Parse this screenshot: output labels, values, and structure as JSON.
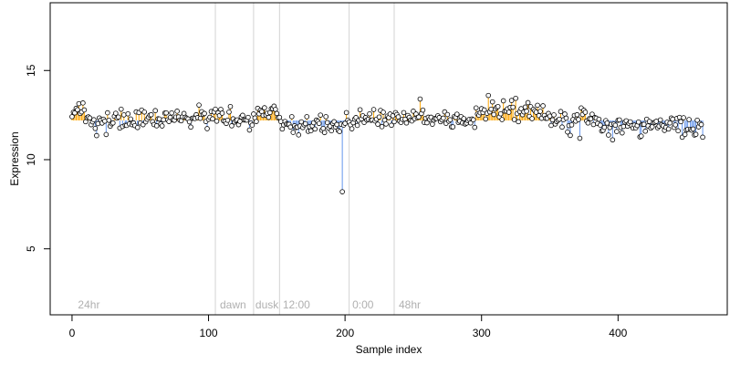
{
  "chart_data": {
    "type": "scatter",
    "title": "",
    "xlabel": "Sample index",
    "ylabel": "Expression",
    "xlim": [
      -16,
      480
    ],
    "ylim": [
      1.3,
      18.8
    ],
    "x_ticks": [
      0,
      100,
      200,
      300,
      400
    ],
    "y_ticks": [
      5,
      10,
      15
    ],
    "baseline": 12.2,
    "grid": false,
    "legend": "none",
    "colors": {
      "above": "#ffa500",
      "below": "#6495ed",
      "point_fill": "#ffffff",
      "point_stroke": "#000000",
      "guide": "#d3d3d3",
      "label": "#b0b0b0"
    },
    "regions": [
      {
        "x": 105,
        "label": ""
      },
      {
        "x": 133,
        "label": ""
      },
      {
        "x": 152,
        "label": ""
      },
      {
        "x": 203,
        "label": ""
      },
      {
        "x": 236,
        "label": ""
      }
    ],
    "region_labels": [
      {
        "x": 3,
        "text": "24hr"
      },
      {
        "x": 107,
        "text": "dawn"
      },
      {
        "x": 133,
        "text": "dusk"
      },
      {
        "x": 153,
        "text": "12:00"
      },
      {
        "x": 204,
        "text": "0:00"
      },
      {
        "x": 238,
        "text": "48hr"
      }
    ],
    "segments": [
      {
        "from": 0,
        "to": 9,
        "mean": 12.7
      },
      {
        "from": 10,
        "to": 87,
        "mean": 12.2
      },
      {
        "from": 88,
        "to": 104,
        "mean": 12.45
      },
      {
        "from": 105,
        "to": 132,
        "mean": 12.3
      },
      {
        "from": 133,
        "to": 152,
        "mean": 12.6
      },
      {
        "from": 153,
        "to": 175,
        "mean": 11.95
      },
      {
        "from": 176,
        "to": 200,
        "mean": 11.9
      },
      {
        "from": 201,
        "to": 262,
        "mean": 12.25
      },
      {
        "from": 263,
        "to": 299,
        "mean": 12.3
      },
      {
        "from": 300,
        "to": 345,
        "mean": 12.7
      },
      {
        "from": 346,
        "to": 387,
        "mean": 12.2
      },
      {
        "from": 388,
        "to": 462,
        "mean": 11.85
      }
    ],
    "spikes": [
      {
        "x": 198,
        "y": 8.2
      },
      {
        "x": 255,
        "y": 13.4
      },
      {
        "x": 305,
        "y": 13.6
      },
      {
        "x": 296,
        "y": 12.9
      },
      {
        "x": 316,
        "y": 13.3
      },
      {
        "x": 372,
        "y": 11.2
      }
    ],
    "n_points": 463,
    "noise": 0.28
  }
}
